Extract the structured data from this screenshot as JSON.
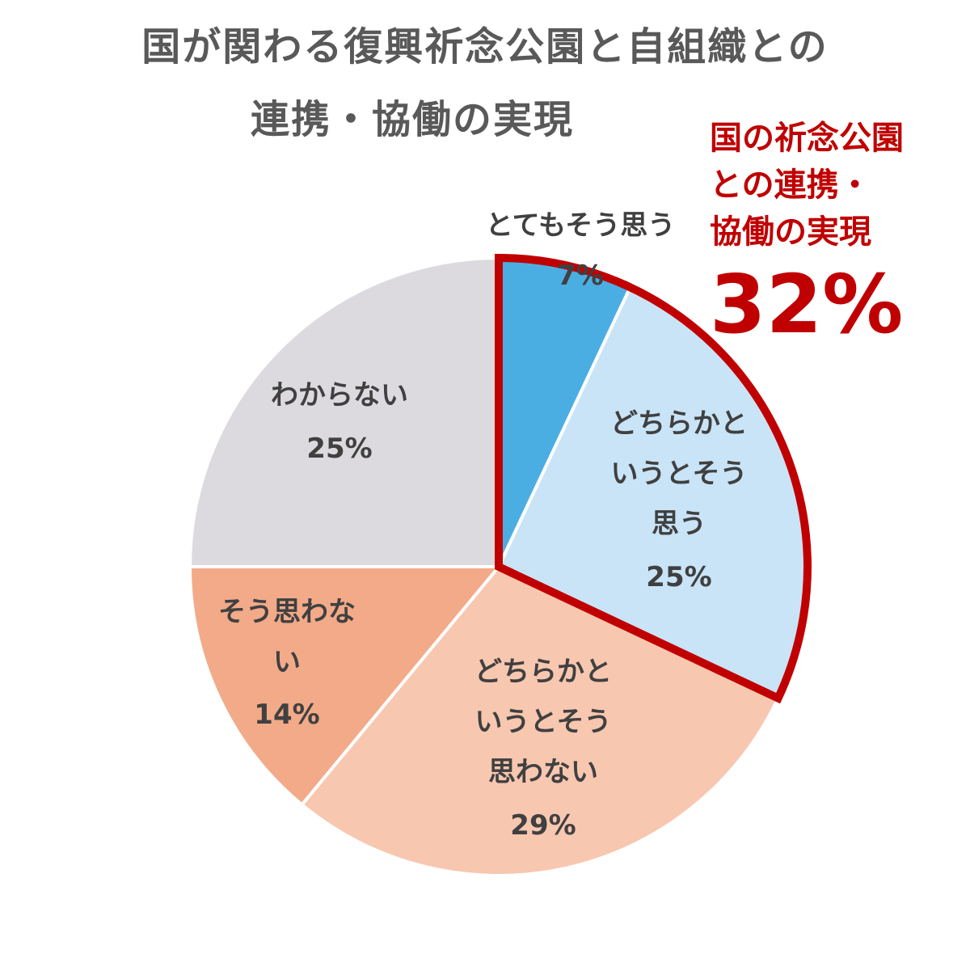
{
  "title": {
    "line1": "国が関わる復興祈念公園と自組織との",
    "line2": "連携・協働の実現"
  },
  "callout": {
    "lines": [
      "国の祈念公園",
      "との連携・",
      "協働の実現"
    ],
    "value": "32%",
    "color": "#c00000"
  },
  "chart_data": {
    "type": "pie",
    "start_angle_deg": 0,
    "direction": "clockwise",
    "slices": [
      {
        "label": "とてもそう思う",
        "value": 7,
        "value_label": "7%",
        "color": "#4baee3",
        "highlighted": true
      },
      {
        "label": "どちらかというとそう思う",
        "value": 25,
        "value_label": "25%",
        "color": "#c9e4f7",
        "highlighted": true
      },
      {
        "label": "どちらかというとそう思わない",
        "value": 29,
        "value_label": "29%",
        "color": "#f8c7b0"
      },
      {
        "label": "そう思わない",
        "value": 14,
        "value_label": "14%",
        "color": "#f2aa89"
      },
      {
        "label": "わからない",
        "value": 25,
        "value_label": "25%",
        "color": "#dcdadf"
      }
    ]
  }
}
